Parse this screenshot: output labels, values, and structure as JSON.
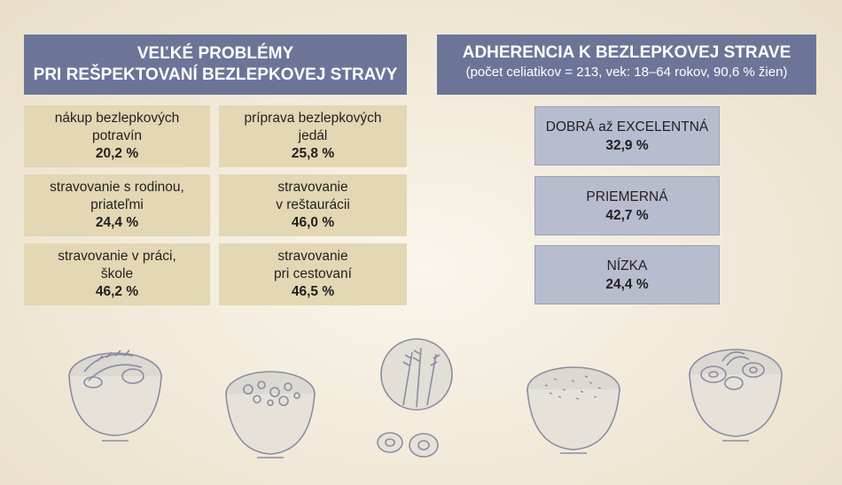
{
  "left_panel": {
    "title_line1": "VEĽKÉ PROBLÉMY",
    "title_line2": "PRI REŠPEKTOVANÍ BEZLEPKOVEJ STRAVY",
    "items": [
      {
        "line1": "nákup bezlepkových",
        "line2": "potravín",
        "value": "20,2 %"
      },
      {
        "line1": "príprava bezlepkových",
        "line2": "jedál",
        "value": "25,8 %"
      },
      {
        "line1": "stravovanie s rodinou,",
        "line2": "priateľmi",
        "value": "24,4 %"
      },
      {
        "line1": "stravovanie",
        "line2": "v reštaurácii",
        "value": "46,0 %"
      },
      {
        "line1": "stravovanie v práci,",
        "line2": "škole",
        "value": "46,2 %"
      },
      {
        "line1": "stravovanie",
        "line2": "pri cestovaní",
        "value": "46,5 %"
      }
    ]
  },
  "right_panel": {
    "title": "ADHERENCIA K BEZLEPKOVEJ STRAVE",
    "subtitle": "(počet celiatikov = 213, vek: 18–64 rokov, 90,6 % žien)",
    "levels": [
      {
        "label": "DOBRÁ až EXCELENTNÁ",
        "value": "32,9 %"
      },
      {
        "label": "PRIEMERNÁ",
        "value": "42,7 %"
      },
      {
        "label": "NÍZKA",
        "value": "24,4 %"
      }
    ]
  },
  "illustrations": [
    "bowl-with-wheat-icon",
    "bowl-with-stew-icon",
    "wheat-ears-icon",
    "bowl-with-grain-icon",
    "bowl-with-salad-icon"
  ]
}
